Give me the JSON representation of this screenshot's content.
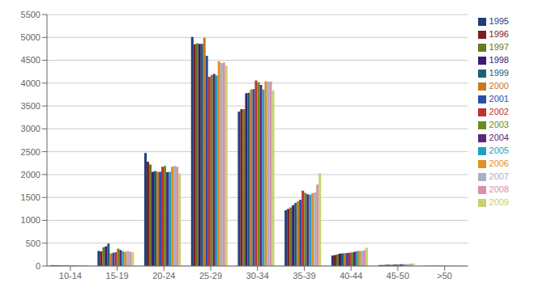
{
  "chart_data": {
    "type": "bar",
    "categories": [
      "10-14",
      "15-19",
      "20-24",
      "25-29",
      "30-34",
      "35-39",
      "40-44",
      "45-50",
      ">50"
    ],
    "series": [
      {
        "name": "1995",
        "color": "#1F3D7A",
        "values": [
          20,
          330,
          2470,
          5010,
          3380,
          1220,
          230,
          20,
          5
        ]
      },
      {
        "name": "1996",
        "color": "#7B2020",
        "values": [
          15,
          320,
          2280,
          4850,
          3430,
          1250,
          240,
          22,
          5
        ]
      },
      {
        "name": "1997",
        "color": "#6B7820",
        "values": [
          18,
          410,
          2220,
          4870,
          3430,
          1280,
          255,
          25,
          5
        ]
      },
      {
        "name": "1998",
        "color": "#3A1A72",
        "values": [
          12,
          430,
          2060,
          4860,
          3780,
          1330,
          270,
          28,
          5
        ]
      },
      {
        "name": "1999",
        "color": "#1A607A",
        "values": [
          10,
          490,
          2080,
          4860,
          3790,
          1380,
          275,
          30,
          5
        ]
      },
      {
        "name": "2000",
        "color": "#C87820",
        "values": [
          15,
          275,
          2060,
          4990,
          3860,
          1420,
          280,
          30,
          5
        ]
      },
      {
        "name": "2001",
        "color": "#2B4EA8",
        "values": [
          12,
          290,
          2060,
          4600,
          3870,
          1450,
          285,
          32,
          5
        ]
      },
      {
        "name": "2002",
        "color": "#C03030",
        "values": [
          10,
          300,
          2170,
          4140,
          4060,
          1650,
          290,
          35,
          5
        ]
      },
      {
        "name": "2003",
        "color": "#6B8C20",
        "values": [
          10,
          380,
          2190,
          4180,
          4020,
          1600,
          300,
          35,
          5
        ]
      },
      {
        "name": "2004",
        "color": "#5A2878",
        "values": [
          12,
          350,
          2050,
          4200,
          3960,
          1570,
          310,
          38,
          5
        ]
      },
      {
        "name": "2005",
        "color": "#20A0C8",
        "values": [
          10,
          320,
          2060,
          4170,
          3860,
          1560,
          325,
          40,
          5
        ]
      },
      {
        "name": "2006",
        "color": "#E09020",
        "values": [
          12,
          310,
          2170,
          4480,
          4040,
          1590,
          330,
          42,
          5
        ]
      },
      {
        "name": "2007",
        "color": "#A8B0C8",
        "values": [
          15,
          330,
          2190,
          4440,
          4030,
          1610,
          330,
          45,
          5
        ]
      },
      {
        "name": "2008",
        "color": "#D890A8",
        "values": [
          18,
          310,
          2170,
          4450,
          4030,
          1780,
          345,
          50,
          5
        ]
      },
      {
        "name": "2009",
        "color": "#C8D070",
        "values": [
          15,
          305,
          2020,
          4380,
          3840,
          2030,
          400,
          55,
          5
        ]
      }
    ],
    "ylim": [
      0,
      5500
    ],
    "yticks": [
      0,
      500,
      1000,
      1500,
      2000,
      2500,
      3000,
      3500,
      4000,
      4500,
      5000,
      5500
    ],
    "grid": true,
    "legend": "right"
  }
}
